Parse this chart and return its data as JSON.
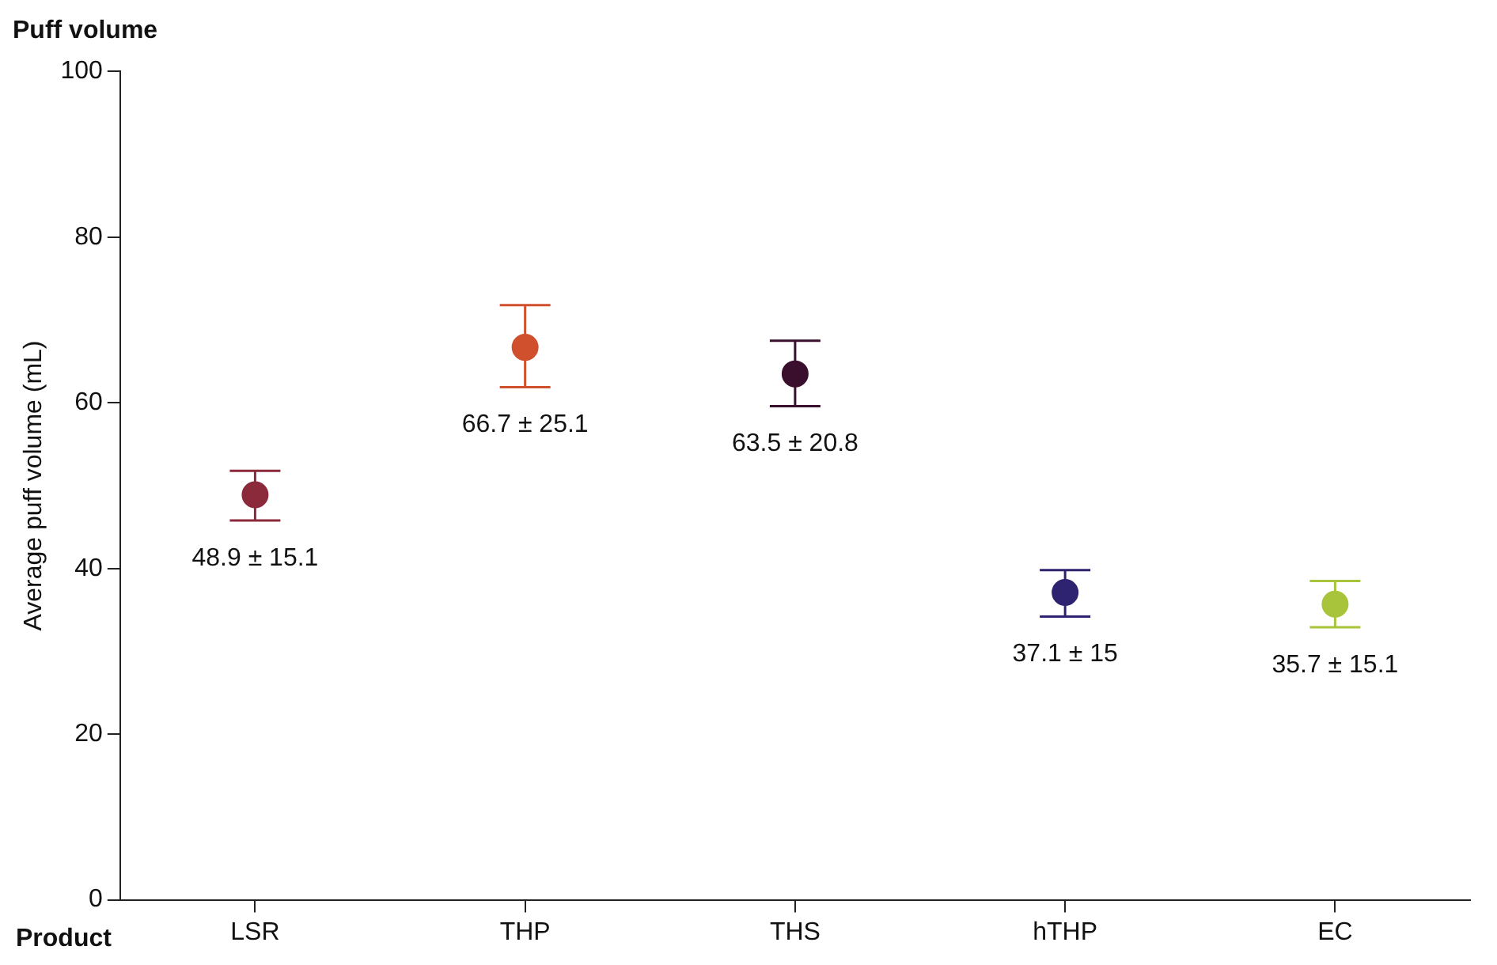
{
  "chart_data": {
    "type": "scatter",
    "title": "Puff volume",
    "xlabel": "Product",
    "ylabel": "Average puff volume (mL)",
    "categories": [
      "LSR",
      "THP",
      "THS",
      "hTHP",
      "EC"
    ],
    "values": [
      48.9,
      66.7,
      63.5,
      37.1,
      35.7
    ],
    "colors": [
      "#8b2a3a",
      "#d0502e",
      "#3a0f2e",
      "#2e2370",
      "#a8c43a"
    ],
    "errors": [
      [
        45.8,
        51.8
      ],
      [
        61.9,
        71.8
      ],
      [
        59.6,
        67.5
      ],
      [
        34.2,
        39.8
      ],
      [
        32.9,
        38.5
      ]
    ],
    "value_labels": [
      "48.9 ± 15.1",
      "66.7 ± 25.1",
      "63.5 ± 20.8",
      "37.1 ± 15",
      "35.7 ± 15.1"
    ],
    "ylim": [
      0,
      100
    ],
    "yticks": [
      0,
      20,
      40,
      60,
      80,
      100
    ],
    "marker": "circle"
  }
}
